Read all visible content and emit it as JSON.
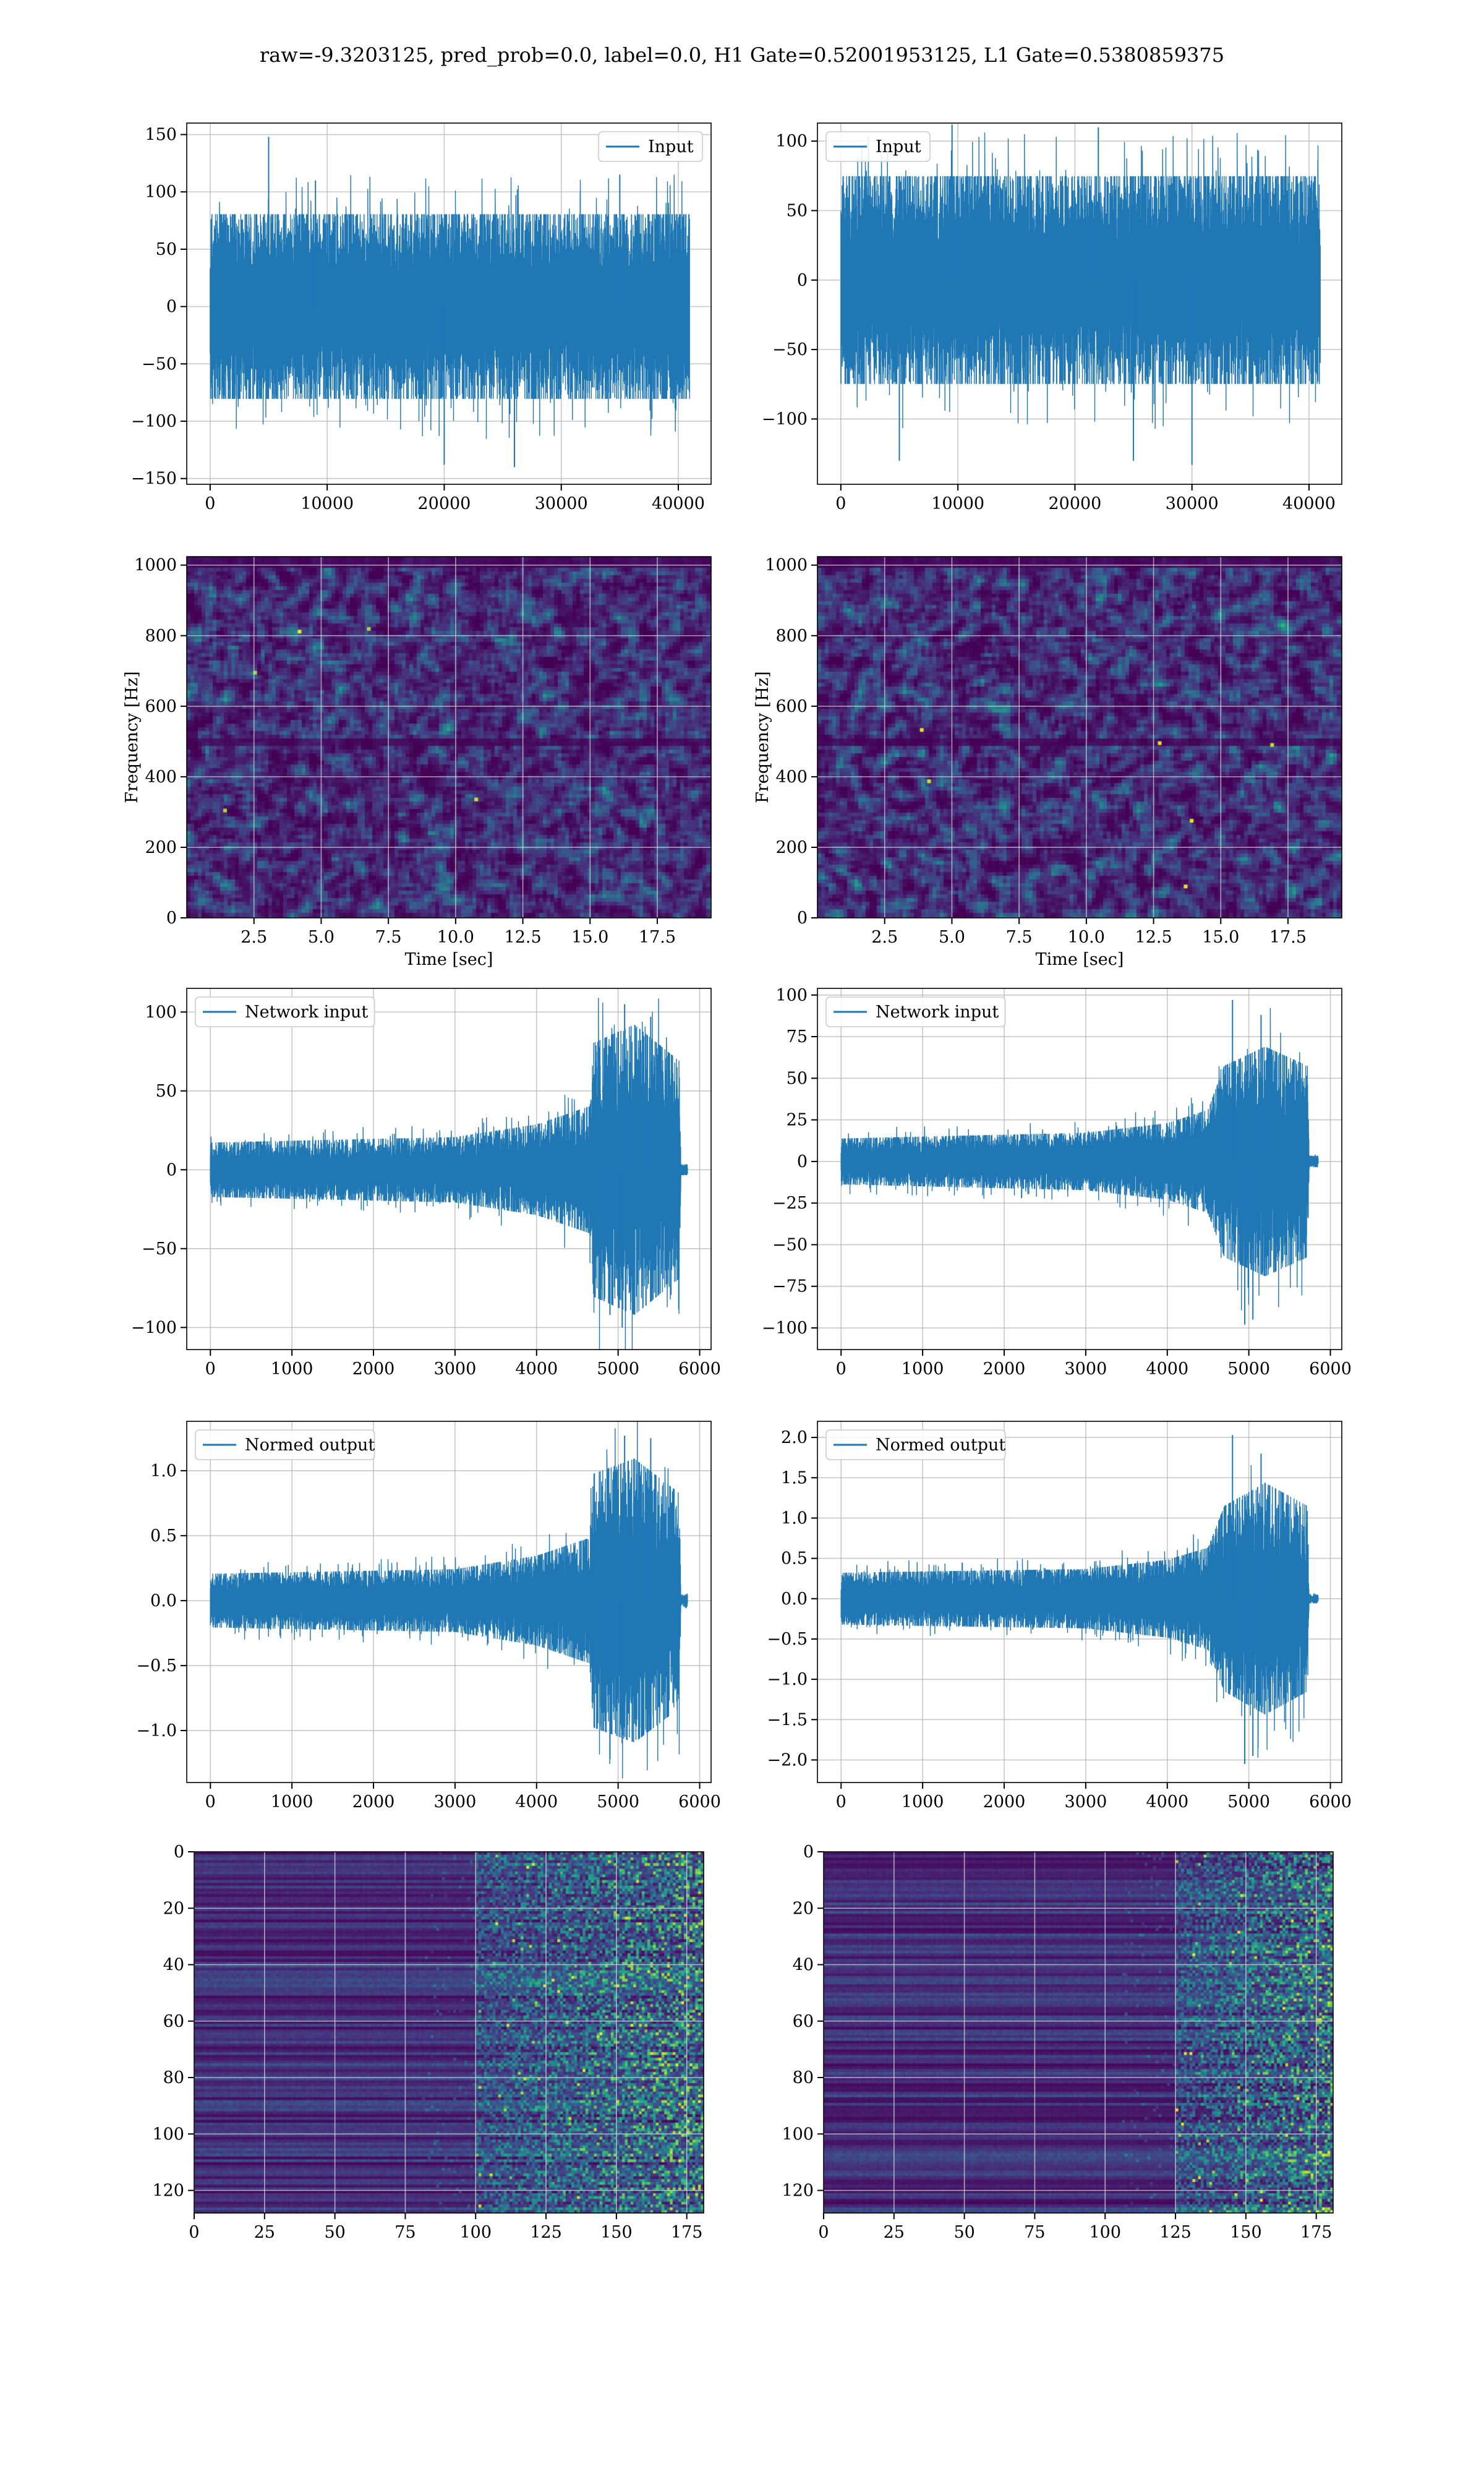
{
  "figure": {
    "title": "raw=-9.3203125, pred_prob=0.0, label=0.0, H1 Gate=0.52001953125, L1 Gate=0.5380859375"
  },
  "colors": {
    "line": "#1f77b4",
    "grid": "#b0b0b0",
    "viridis": [
      "#440154",
      "#472c7a",
      "#3b518b",
      "#2c718e",
      "#21908d",
      "#27ad81",
      "#5cc863",
      "#aadc32",
      "#fde725"
    ]
  },
  "chart_data": [
    {
      "id": "h1-input",
      "type": "line",
      "legend": "Input",
      "legend_loc": "top-right",
      "xlim": [
        -2000,
        42800
      ],
      "ylim": [
        -155,
        160
      ],
      "xticks": [
        0,
        10000,
        20000,
        30000,
        40000
      ],
      "yticks": [
        -150,
        -100,
        -50,
        0,
        50,
        100,
        150
      ],
      "x_range": [
        0,
        40959
      ],
      "envelope": [
        [
          0,
          70
        ],
        [
          40959,
          70
        ]
      ],
      "spikes": [
        [
          5000,
          148
        ],
        [
          20000,
          -138
        ],
        [
          26000,
          -140
        ],
        [
          9000,
          110
        ],
        [
          35000,
          115
        ]
      ],
      "grid": true
    },
    {
      "id": "l1-input",
      "type": "line",
      "legend": "Input",
      "legend_loc": "top-left",
      "xlim": [
        -2000,
        42800
      ],
      "ylim": [
        -147,
        113
      ],
      "xticks": [
        0,
        10000,
        20000,
        30000,
        40000
      ],
      "yticks": [
        -100,
        -50,
        0,
        50,
        100
      ],
      "x_range": [
        0,
        40959
      ],
      "envelope": [
        [
          0,
          65
        ],
        [
          40959,
          65
        ]
      ],
      "spikes": [
        [
          9500,
          112
        ],
        [
          5000,
          -130
        ],
        [
          25000,
          -130
        ],
        [
          30000,
          -133
        ],
        [
          22000,
          110
        ]
      ],
      "grid": true
    },
    {
      "id": "h1-spectrogram",
      "type": "heatmap",
      "xlabel": "Time [sec]",
      "ylabel": "Frequency [Hz]",
      "xlim": [
        0,
        19.5
      ],
      "ylim": [
        0,
        1024
      ],
      "xticks": [
        2.5,
        5.0,
        7.5,
        10.0,
        12.5,
        15.0,
        17.5
      ],
      "yticks": [
        0,
        200,
        400,
        600,
        800,
        1000
      ],
      "grid": true
    },
    {
      "id": "l1-spectrogram",
      "type": "heatmap",
      "xlabel": "Time [sec]",
      "ylabel": "Frequency [Hz]",
      "xlim": [
        0,
        19.5
      ],
      "ylim": [
        0,
        1024
      ],
      "xticks": [
        2.5,
        5.0,
        7.5,
        10.0,
        12.5,
        15.0,
        17.5
      ],
      "yticks": [
        0,
        200,
        400,
        600,
        800,
        1000
      ],
      "grid": true
    },
    {
      "id": "h1-network-input",
      "type": "line",
      "legend": "Network input",
      "legend_loc": "top-left",
      "xlim": [
        -290,
        6140
      ],
      "ylim": [
        -114,
        115
      ],
      "xticks": [
        0,
        1000,
        2000,
        3000,
        4000,
        5000,
        6000
      ],
      "yticks": [
        -100,
        -50,
        0,
        50,
        100
      ],
      "x_range": [
        0,
        5850
      ],
      "envelope": [
        [
          0,
          15
        ],
        [
          3000,
          18
        ],
        [
          4000,
          25
        ],
        [
          4650,
          35
        ],
        [
          4700,
          70
        ],
        [
          5200,
          80
        ],
        [
          5750,
          60
        ],
        [
          5770,
          3
        ],
        [
          5850,
          3
        ]
      ],
      "spikes": [
        [
          5080,
          105
        ],
        [
          5050,
          -100
        ],
        [
          4900,
          -92
        ],
        [
          5400,
          97
        ]
      ],
      "grid": true
    },
    {
      "id": "l1-network-input",
      "type": "line",
      "legend": "Network input",
      "legend_loc": "top-left",
      "xlim": [
        -290,
        6140
      ],
      "ylim": [
        -113,
        104
      ],
      "xticks": [
        0,
        1000,
        2000,
        3000,
        4000,
        5000,
        6000
      ],
      "yticks": [
        -100,
        -75,
        -50,
        -25,
        0,
        25,
        50,
        75,
        100
      ],
      "x_range": [
        0,
        5850
      ],
      "envelope": [
        [
          0,
          12
        ],
        [
          3000,
          15
        ],
        [
          4000,
          20
        ],
        [
          4500,
          27
        ],
        [
          4700,
          50
        ],
        [
          5200,
          60
        ],
        [
          5720,
          50
        ],
        [
          5740,
          3
        ],
        [
          5850,
          3
        ]
      ],
      "spikes": [
        [
          4800,
          97
        ],
        [
          4950,
          -98
        ],
        [
          5150,
          88
        ],
        [
          5050,
          -95
        ]
      ],
      "grid": true
    },
    {
      "id": "h1-normed-output",
      "type": "line",
      "legend": "Normed output",
      "legend_loc": "top-left",
      "xlim": [
        -290,
        6140
      ],
      "ylim": [
        -1.4,
        1.38
      ],
      "xticks": [
        0,
        1000,
        2000,
        3000,
        4000,
        5000,
        6000
      ],
      "yticks": [
        -1.0,
        -0.5,
        0.0,
        0.5,
        1.0
      ],
      "x_range": [
        0,
        5850
      ],
      "envelope": [
        [
          0,
          0.18
        ],
        [
          3000,
          0.21
        ],
        [
          4000,
          0.3
        ],
        [
          4650,
          0.42
        ],
        [
          4700,
          0.85
        ],
        [
          5200,
          0.95
        ],
        [
          5750,
          0.72
        ],
        [
          5770,
          0.04
        ],
        [
          5850,
          0.04
        ]
      ],
      "spikes": [
        [
          5080,
          1.27
        ],
        [
          5400,
          1.25
        ],
        [
          4900,
          -1.22
        ],
        [
          5050,
          -1.1
        ]
      ],
      "grid": true
    },
    {
      "id": "l1-normed-output",
      "type": "line",
      "legend": "Normed output",
      "legend_loc": "top-left",
      "xlim": [
        -290,
        6140
      ],
      "ylim": [
        -2.28,
        2.2
      ],
      "xticks": [
        0,
        1000,
        2000,
        3000,
        4000,
        5000,
        6000
      ],
      "yticks": [
        -2.0,
        -1.5,
        -1.0,
        -0.5,
        0.0,
        0.5,
        1.0,
        1.5,
        2.0
      ],
      "x_range": [
        0,
        5850
      ],
      "envelope": [
        [
          0,
          0.28
        ],
        [
          3000,
          0.32
        ],
        [
          4000,
          0.42
        ],
        [
          4500,
          0.55
        ],
        [
          4700,
          1.0
        ],
        [
          5200,
          1.25
        ],
        [
          5720,
          1.0
        ],
        [
          5740,
          0.05
        ],
        [
          5850,
          0.05
        ]
      ],
      "spikes": [
        [
          4800,
          2.03
        ],
        [
          4950,
          -2.05
        ],
        [
          5150,
          1.8
        ],
        [
          5050,
          -1.95
        ]
      ],
      "grid": true
    },
    {
      "id": "h1-embedding",
      "type": "heatmap",
      "xlim": [
        0,
        181
      ],
      "ylim": [
        128,
        0
      ],
      "xticks": [
        0,
        25,
        50,
        75,
        100,
        125,
        150,
        175
      ],
      "yticks": [
        0,
        20,
        40,
        60,
        80,
        100,
        120
      ],
      "active_from": 100,
      "grid": true
    },
    {
      "id": "l1-embedding",
      "type": "heatmap",
      "xlim": [
        0,
        181
      ],
      "ylim": [
        128,
        0
      ],
      "xticks": [
        0,
        25,
        50,
        75,
        100,
        125,
        150,
        175
      ],
      "yticks": [
        0,
        20,
        40,
        60,
        80,
        100,
        120
      ],
      "active_from": 125,
      "grid": true
    }
  ]
}
